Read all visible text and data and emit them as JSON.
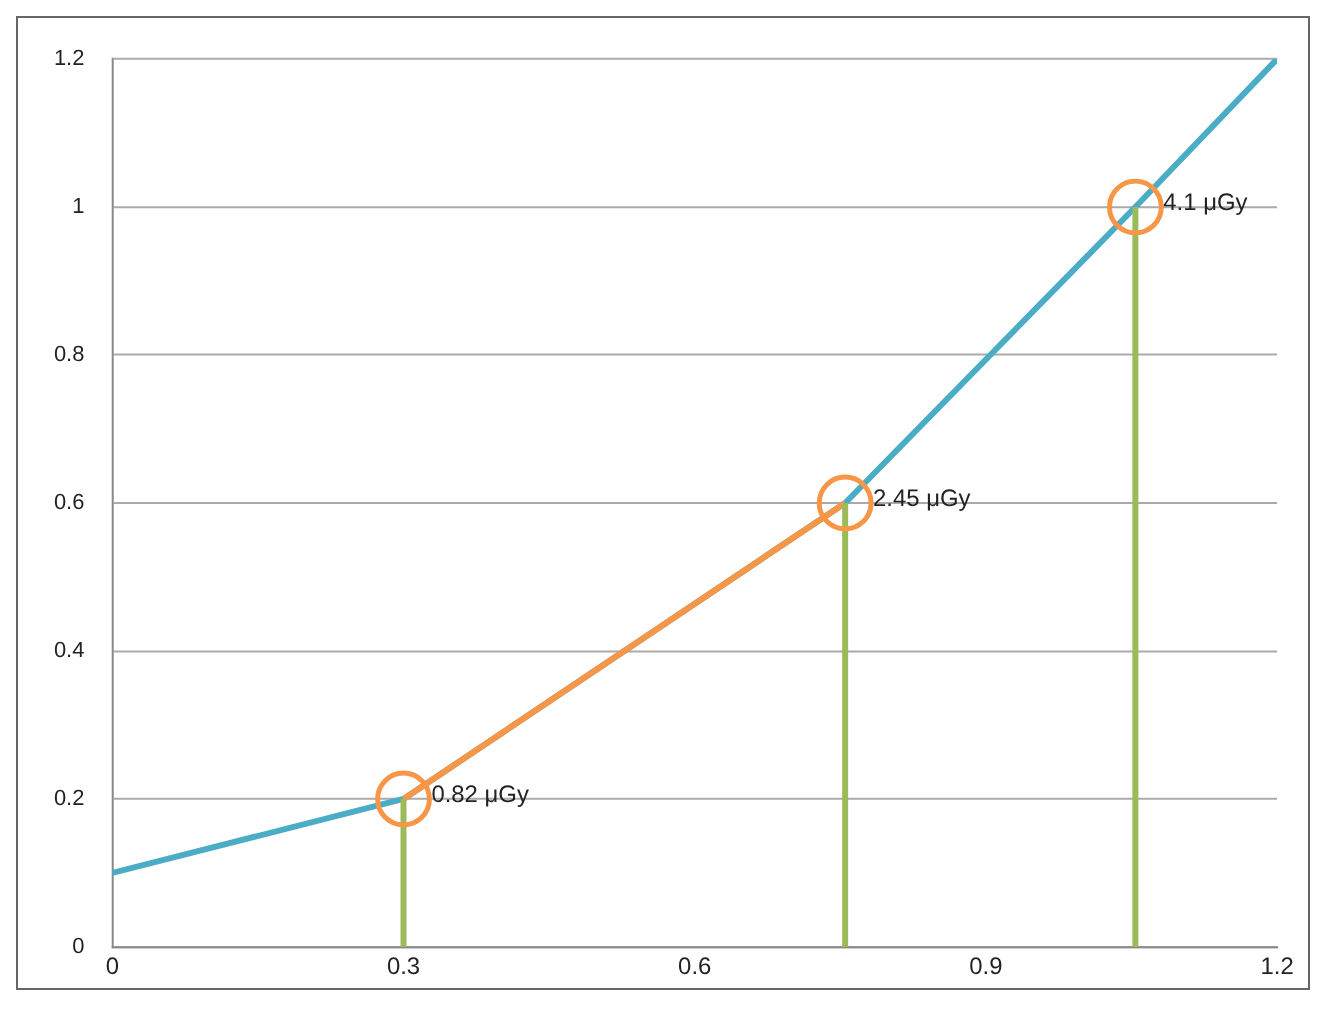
{
  "chart_data": {
    "type": "line",
    "xlim": [
      0,
      1.2
    ],
    "ylim": [
      0,
      1.2
    ],
    "xticks": [
      0,
      0.3,
      0.6,
      0.9,
      1.2
    ],
    "yticks": [
      0,
      0.2,
      0.4,
      0.6,
      0.8,
      1,
      1.2
    ],
    "grid": "y",
    "legend": false,
    "series": [
      {
        "x": [
          0,
          0.3,
          0.755,
          1.054,
          1.2
        ],
        "values": [
          0.1,
          0.2,
          0.6,
          1,
          1.2
        ],
        "color": "#4bacc6",
        "marker": "none"
      },
      {
        "x": [
          0.3,
          0.755
        ],
        "values": [
          0.2,
          0.6
        ],
        "color": "#f79646",
        "marker": "none"
      },
      {
        "x": [
          0.3,
          0.3
        ],
        "values": [
          0,
          0.2
        ],
        "color": "#9bbb59",
        "marker": "none"
      },
      {
        "x": [
          0.755,
          0.755
        ],
        "values": [
          0,
          0.6
        ],
        "color": "#9bbb59",
        "marker": "none"
      },
      {
        "x": [
          1.054,
          1.054
        ],
        "values": [
          0,
          1
        ],
        "color": "#9bbb59",
        "marker": "none"
      },
      {
        "type": "scatter",
        "x": [
          0.3,
          0.755,
          1.054
        ],
        "values": [
          0.2,
          0.6,
          1
        ],
        "color": "#f79646",
        "marker": "circle"
      }
    ],
    "annotations": [
      {
        "text": "0.82 μGy",
        "x": 0.3,
        "y": 0.2
      },
      {
        "text": "2.45 μGy",
        "x": 0.755,
        "y": 0.6
      },
      {
        "text": "4.1 μGy",
        "x": 1.054,
        "y": 1
      }
    ]
  }
}
